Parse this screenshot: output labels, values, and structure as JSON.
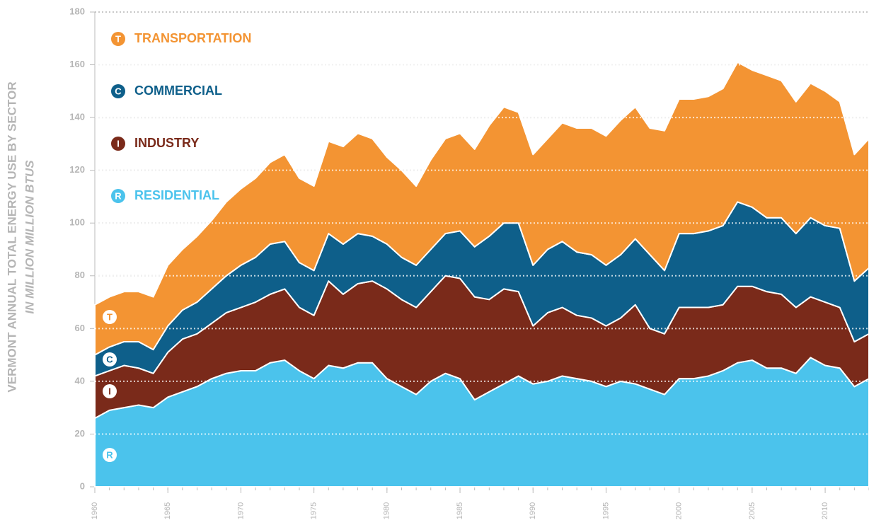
{
  "chart_data": {
    "type": "stacked_area",
    "y_label": "VERMONT ANNUAL TOTAL  ENERGY USE BY SECTOR",
    "y_sublabel": "IN MILLION MILLION BTUS",
    "x": [
      1960,
      1961,
      1962,
      1963,
      1964,
      1965,
      1966,
      1967,
      1968,
      1969,
      1970,
      1971,
      1972,
      1973,
      1974,
      1975,
      1976,
      1977,
      1978,
      1979,
      1980,
      1981,
      1982,
      1983,
      1984,
      1985,
      1986,
      1987,
      1988,
      1989,
      1990,
      1991,
      1992,
      1993,
      1994,
      1995,
      1996,
      1997,
      1998,
      1999,
      2000,
      2001,
      2002,
      2003,
      2004,
      2005,
      2006,
      2007,
      2008,
      2009,
      2010,
      2011,
      2012,
      2013
    ],
    "xlim": [
      1960,
      2013
    ],
    "xticks": [
      1960,
      1965,
      1970,
      1975,
      1980,
      1985,
      1990,
      1995,
      2000,
      2005,
      2010
    ],
    "ylim": [
      0,
      180
    ],
    "yticks": [
      0,
      20,
      40,
      60,
      80,
      100,
      120,
      140,
      160,
      180
    ],
    "grid": true,
    "series": [
      {
        "name": "RESIDENTIAL",
        "badge": "R",
        "color": "#4bc3ec",
        "values": [
          26,
          29,
          30,
          31,
          30,
          34,
          36,
          38,
          41,
          43,
          44,
          44,
          47,
          48,
          44,
          41,
          46,
          45,
          47,
          47,
          41,
          38,
          35,
          40,
          43,
          41,
          33,
          36,
          39,
          42,
          39,
          40,
          42,
          41,
          40,
          38,
          40,
          39,
          37,
          35,
          41,
          41,
          42,
          44,
          47,
          48,
          45,
          45,
          43,
          49,
          46,
          45,
          38,
          41
        ]
      },
      {
        "name": "INDUSTRY",
        "badge": "I",
        "color": "#7a2a1a",
        "values": [
          16,
          15,
          16,
          14,
          13,
          17,
          20,
          20,
          21,
          23,
          24,
          26,
          26,
          27,
          24,
          24,
          32,
          28,
          30,
          31,
          34,
          33,
          33,
          34,
          37,
          38,
          39,
          35,
          36,
          32,
          22,
          26,
          26,
          24,
          24,
          23,
          24,
          30,
          23,
          23,
          27,
          27,
          26,
          25,
          29,
          28,
          29,
          28,
          25,
          23,
          24,
          23,
          17,
          17
        ]
      },
      {
        "name": "COMMERCIAL",
        "badge": "C",
        "color": "#0e5f8a",
        "values": [
          8,
          9,
          9,
          10,
          9,
          10,
          11,
          12,
          13,
          14,
          16,
          17,
          19,
          18,
          17,
          17,
          18,
          19,
          19,
          17,
          17,
          16,
          16,
          16,
          16,
          18,
          19,
          24,
          25,
          26,
          23,
          24,
          25,
          24,
          24,
          23,
          24,
          25,
          28,
          24,
          28,
          28,
          29,
          30,
          32,
          30,
          28,
          29,
          28,
          30,
          29,
          30,
          23,
          25
        ]
      },
      {
        "name": "TRANSPORTATION",
        "badge": "T",
        "color": "#f39433",
        "values": [
          19,
          19,
          19,
          19,
          20,
          23,
          23,
          25,
          26,
          28,
          29,
          30,
          31,
          33,
          32,
          32,
          35,
          37,
          38,
          37,
          33,
          33,
          30,
          34,
          36,
          37,
          37,
          42,
          44,
          42,
          42,
          42,
          45,
          47,
          48,
          49,
          51,
          50,
          48,
          53,
          51,
          51,
          51,
          52,
          53,
          52,
          54,
          52,
          50,
          51,
          51,
          48,
          48,
          49
        ]
      }
    ]
  }
}
